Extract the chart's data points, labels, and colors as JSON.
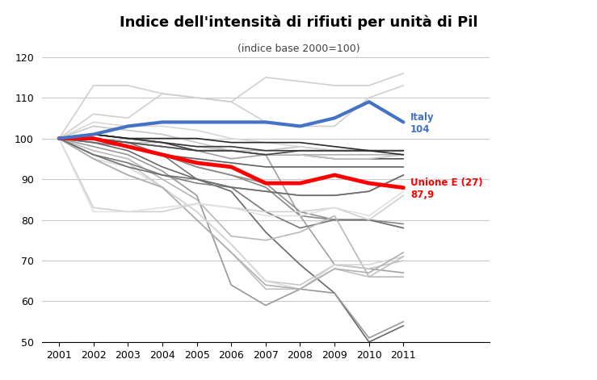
{
  "title": "Indice dell'intensità di rifiuti per unità di Pil",
  "subtitle": "(indice base 2000=100)",
  "years": [
    2001,
    2002,
    2003,
    2004,
    2005,
    2006,
    2007,
    2008,
    2009,
    2010,
    2011
  ],
  "italy": [
    100,
    101,
    103,
    104,
    104,
    104,
    104,
    103,
    105,
    109,
    104
  ],
  "eu27": [
    100,
    100,
    98,
    96,
    94,
    93,
    89,
    89,
    91,
    89,
    87.9
  ],
  "countries": [
    {
      "color": "#d0d0d0",
      "lw": 1.2,
      "data": [
        100,
        113,
        113,
        111,
        110,
        109,
        115,
        114,
        113,
        113,
        116
      ]
    },
    {
      "color": "#d0d0d0",
      "lw": 1.2,
      "data": [
        100,
        106,
        105,
        111,
        110,
        109,
        104,
        103,
        103,
        110,
        113
      ]
    },
    {
      "color": "#c0c0c0",
      "lw": 1.2,
      "data": [
        100,
        100,
        99,
        99,
        98,
        97,
        97,
        98,
        97,
        97,
        97
      ]
    },
    {
      "color": "#b0b0b0",
      "lw": 1.2,
      "data": [
        100,
        100,
        99,
        98,
        97,
        97,
        96,
        96,
        96,
        96,
        96
      ]
    },
    {
      "color": "#a0a0a0",
      "lw": 1.2,
      "data": [
        100,
        100,
        99,
        98,
        97,
        95,
        96,
        81,
        69,
        68,
        67
      ]
    },
    {
      "color": "#888888",
      "lw": 1.2,
      "data": [
        100,
        99,
        98,
        96,
        93,
        91,
        88,
        81,
        80,
        80,
        79
      ]
    },
    {
      "color": "#909090",
      "lw": 1.2,
      "data": [
        100,
        99,
        98,
        96,
        93,
        91,
        89,
        82,
        80,
        80,
        78
      ]
    },
    {
      "color": "#787878",
      "lw": 1.2,
      "data": [
        100,
        100,
        99,
        96,
        90,
        88,
        82,
        78,
        80,
        80,
        78
      ]
    },
    {
      "color": "#686868",
      "lw": 1.2,
      "data": [
        100,
        99,
        97,
        93,
        90,
        87,
        77,
        69,
        62,
        50,
        54
      ]
    },
    {
      "color": "#989898",
      "lw": 1.2,
      "data": [
        100,
        98,
        96,
        92,
        86,
        64,
        59,
        63,
        62,
        51,
        55
      ]
    },
    {
      "color": "#b8b8b8",
      "lw": 1.2,
      "data": [
        100,
        97,
        95,
        90,
        85,
        76,
        75,
        77,
        81,
        66,
        66
      ]
    },
    {
      "color": "#c8c8c8",
      "lw": 1.2,
      "data": [
        100,
        96,
        94,
        88,
        82,
        74,
        65,
        64,
        69,
        68,
        70
      ]
    },
    {
      "color": "#d8d8d8",
      "lw": 1.2,
      "data": [
        100,
        95,
        93,
        88,
        82,
        74,
        65,
        63,
        69,
        69,
        71
      ]
    },
    {
      "color": "#c0c0c0",
      "lw": 1.2,
      "data": [
        100,
        95,
        91,
        88,
        80,
        72,
        63,
        63,
        68,
        66,
        71
      ]
    },
    {
      "color": "#b0b0b0",
      "lw": 1.2,
      "data": [
        100,
        95,
        91,
        88,
        80,
        72,
        64,
        63,
        68,
        67,
        72
      ]
    },
    {
      "color": "#808080",
      "lw": 1.2,
      "data": [
        100,
        96,
        94,
        91,
        89,
        88,
        87,
        86,
        86,
        87,
        91
      ]
    },
    {
      "color": "#707070",
      "lw": 1.2,
      "data": [
        100,
        96,
        93,
        91,
        90,
        88,
        87,
        86,
        86,
        87,
        91
      ]
    },
    {
      "color": "#606060",
      "lw": 1.2,
      "data": [
        100,
        100,
        98,
        96,
        95,
        94,
        93,
        93,
        93,
        93,
        93
      ]
    },
    {
      "color": "#505050",
      "lw": 1.2,
      "data": [
        100,
        100,
        99,
        98,
        97,
        97,
        96,
        96,
        95,
        95,
        95
      ]
    },
    {
      "color": "#d0d0d0",
      "lw": 1.2,
      "data": [
        100,
        83,
        82,
        82,
        84,
        83,
        82,
        82,
        83,
        80,
        86
      ]
    },
    {
      "color": "#e0e0e0",
      "lw": 1.2,
      "data": [
        100,
        82,
        82,
        83,
        84,
        83,
        81,
        81,
        83,
        81,
        87
      ]
    },
    {
      "color": "#c8c8c8",
      "lw": 1.2,
      "data": [
        100,
        103,
        102,
        101,
        99,
        97,
        96,
        96,
        95,
        95,
        96
      ]
    },
    {
      "color": "#d8d8d8",
      "lw": 1.2,
      "data": [
        100,
        104,
        103,
        103,
        102,
        100,
        99,
        98,
        97,
        97,
        97
      ]
    },
    {
      "color": "#404040",
      "lw": 1.2,
      "data": [
        100,
        101,
        100,
        99,
        97,
        97,
        96,
        97,
        97,
        97,
        97
      ]
    },
    {
      "color": "#383838",
      "lw": 1.2,
      "data": [
        100,
        101,
        100,
        99,
        98,
        98,
        97,
        97,
        97,
        97,
        97
      ]
    },
    {
      "color": "#282828",
      "lw": 1.2,
      "data": [
        100,
        101,
        100,
        100,
        100,
        99,
        99,
        99,
        98,
        97,
        96
      ]
    }
  ],
  "italy_color": "#4472c4",
  "eu27_color": "#ff0000",
  "italy_lw": 3.0,
  "eu27_lw": 3.5,
  "ylim": [
    50,
    120
  ],
  "yticks": [
    50,
    60,
    70,
    80,
    90,
    100,
    110,
    120
  ],
  "background_color": "#ffffff",
  "grid_color": "#c8c8c8"
}
